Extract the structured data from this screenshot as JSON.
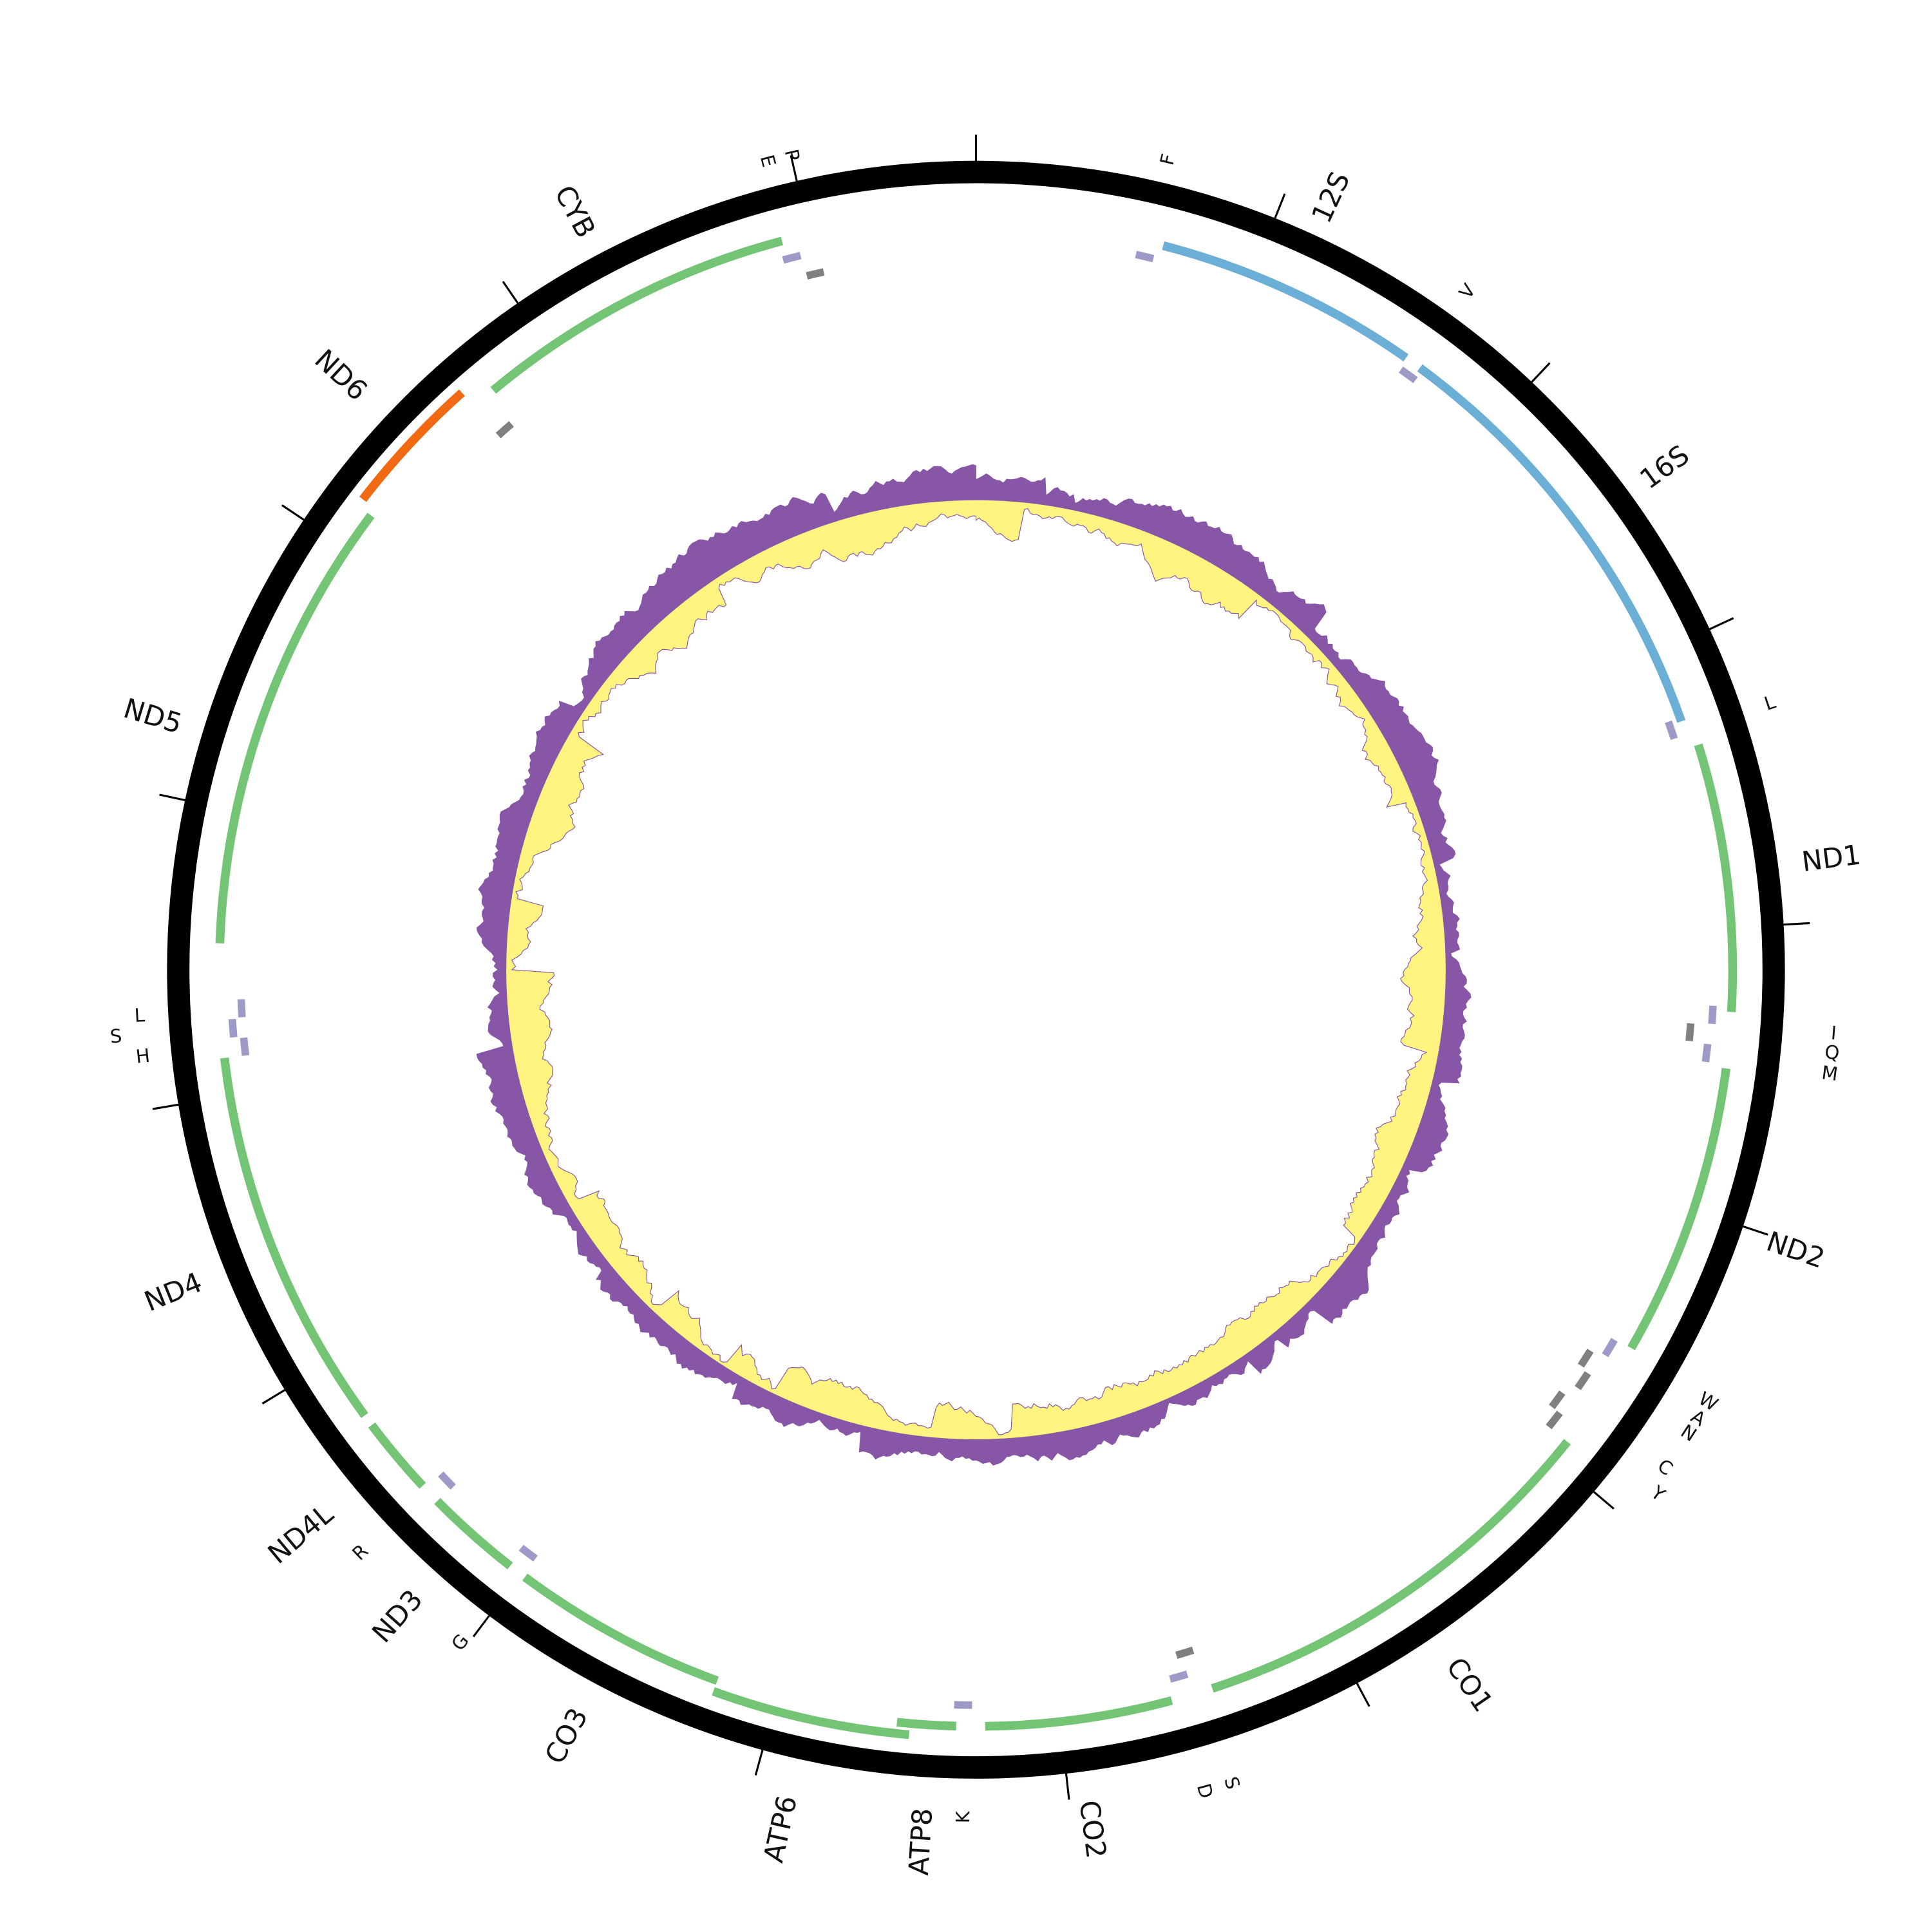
{
  "genes": [
    "12S",
    "16S",
    "ND1",
    "ND2",
    "CO1",
    "CO2",
    "ATP8",
    "ATP6",
    "CO3",
    "ND3",
    "ND4L",
    "ND4",
    "ND5",
    "ND6",
    "CYB"
  ],
  "trnas": [
    "F",
    "V",
    "L",
    "I",
    "Q",
    "M",
    "W",
    "A",
    "N",
    "C",
    "Y",
    "S",
    "D",
    "K",
    "G",
    "R",
    "H",
    "S",
    "L",
    "E",
    "P"
  ]
}
